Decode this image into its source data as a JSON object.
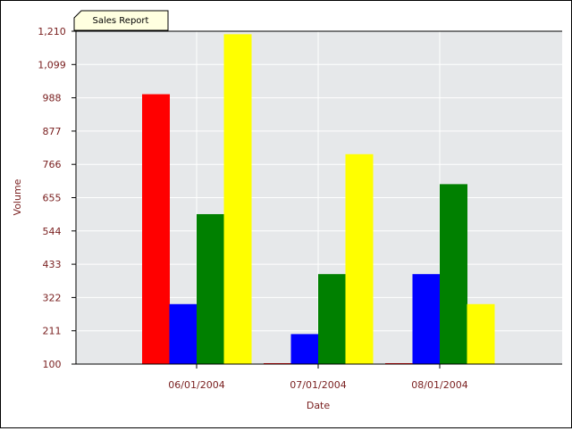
{
  "tab_label": "Sales Report",
  "colors": {
    "plot_bg": "#e6e8ea",
    "grid": "#ffffff",
    "axis_text": "#7a2020",
    "tab_bg": "#ffffe0",
    "series": [
      "#ff0000",
      "#0000ff",
      "#008000",
      "#ffff00"
    ]
  },
  "chart_data": {
    "type": "bar",
    "title": "",
    "xlabel": "Date",
    "ylabel": "Volume",
    "categories": [
      "06/01/2004",
      "07/01/2004",
      "08/01/2004"
    ],
    "ylim": [
      100,
      1210
    ],
    "yticks": [
      "100",
      "211",
      "322",
      "433",
      "544",
      "655",
      "766",
      "877",
      "988",
      "1,099",
      "1,210"
    ],
    "ytick_values": [
      100,
      211,
      322,
      433,
      544,
      655,
      766,
      877,
      988,
      1099,
      1210
    ],
    "grid": true,
    "legend": "none",
    "series": [
      {
        "values": [
          1000,
          100,
          100
        ]
      },
      {
        "values": [
          300,
          200,
          400
        ]
      },
      {
        "values": [
          600,
          400,
          700
        ]
      },
      {
        "values": [
          1200,
          800,
          300
        ]
      }
    ]
  }
}
